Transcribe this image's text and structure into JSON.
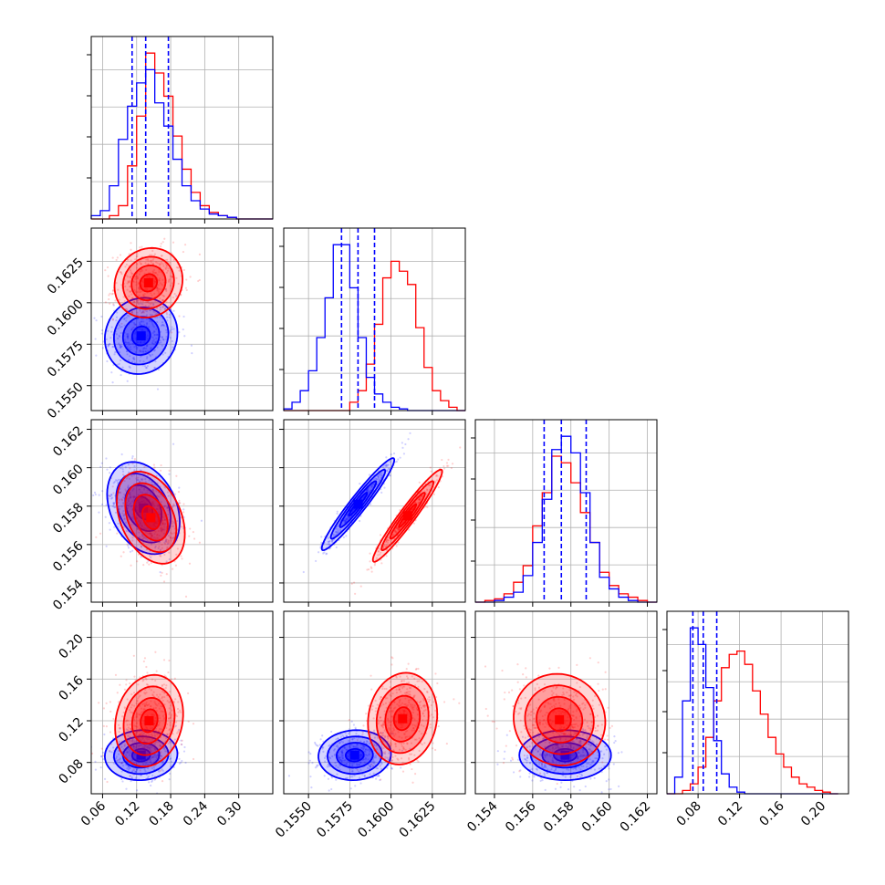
{
  "chart_data": {
    "type": "corner",
    "grid": true,
    "colors": {
      "series_a": "#0000ff",
      "series_b": "#ff0000",
      "frame": "#000000",
      "grid": "#b0b0b0"
    },
    "series": [
      {
        "color_key": "series_a"
      },
      {
        "color_key": "series_b"
      }
    ],
    "params": [
      {
        "range": [
          0.04,
          0.36
        ],
        "ticks": [
          0.06,
          0.12,
          0.18,
          0.24,
          0.3
        ],
        "tick_labels": [
          "0.06",
          "0.12",
          "0.18",
          "0.24",
          "0.30"
        ]
      },
      {
        "range": [
          0.1535,
          0.1645
        ],
        "ticks": [
          0.155,
          0.1575,
          0.16,
          0.1625
        ],
        "tick_labels": [
          "0.1550",
          "0.1575",
          "0.1600",
          "0.1625"
        ]
      },
      {
        "range": [
          0.153,
          0.1625
        ],
        "ticks": [
          0.154,
          0.156,
          0.158,
          0.16,
          0.162
        ],
        "tick_labels": [
          "0.154",
          "0.156",
          "0.158",
          "0.160",
          "0.162"
        ]
      },
      {
        "range": [
          0.05,
          0.225
        ],
        "ticks": [
          0.08,
          0.12,
          0.16,
          0.2
        ],
        "tick_labels": [
          "0.08",
          "0.12",
          "0.16",
          "0.20"
        ]
      }
    ],
    "histograms": [
      {
        "param": 0,
        "bin_edges": [
          0.04,
          0.056,
          0.072,
          0.088,
          0.104,
          0.12,
          0.136,
          0.152,
          0.168,
          0.184,
          0.2,
          0.216,
          0.232,
          0.248,
          0.264,
          0.28,
          0.296,
          0.312,
          0.328,
          0.344,
          0.36
        ],
        "ymax": 1.1,
        "series_a_counts": [
          0.02,
          0.05,
          0.2,
          0.48,
          0.68,
          0.82,
          0.9,
          0.7,
          0.56,
          0.36,
          0.2,
          0.11,
          0.06,
          0.03,
          0.02,
          0.01,
          0.0,
          0.0,
          0.0,
          0.0
        ],
        "series_b_counts": [
          0.0,
          0.0,
          0.02,
          0.08,
          0.32,
          0.62,
          1.0,
          0.88,
          0.74,
          0.5,
          0.3,
          0.16,
          0.08,
          0.04,
          0.02,
          0.01,
          0.0,
          0.0,
          0.0,
          0.0
        ],
        "quantile_lines": [
          0.112,
          0.136,
          0.176
        ]
      },
      {
        "param": 1,
        "bin_edges": [
          0.1535,
          0.154,
          0.1545,
          0.155,
          0.1555,
          0.156,
          0.1565,
          0.157,
          0.1575,
          0.158,
          0.1585,
          0.159,
          0.1595,
          0.16,
          0.1605,
          0.161,
          0.1615,
          0.162,
          0.1625,
          0.163,
          0.1635,
          0.164,
          0.1645
        ],
        "ymax": 1.1,
        "series_a_counts": [
          0.01,
          0.05,
          0.12,
          0.24,
          0.44,
          0.68,
          1.0,
          1.0,
          0.74,
          0.44,
          0.2,
          0.1,
          0.05,
          0.02,
          0.01,
          0.0,
          0.0,
          0.0,
          0.0,
          0.0,
          0.0,
          0.0
        ],
        "series_b_counts": [
          0.0,
          0.0,
          0.0,
          0.0,
          0.0,
          0.0,
          0.0,
          0.0,
          0.05,
          0.12,
          0.28,
          0.52,
          0.8,
          0.9,
          0.84,
          0.76,
          0.5,
          0.26,
          0.12,
          0.06,
          0.02,
          0.0
        ],
        "quantile_lines": [
          0.157,
          0.158,
          0.159
        ]
      },
      {
        "param": 2,
        "bin_edges": [
          0.153,
          0.1535,
          0.154,
          0.1545,
          0.155,
          0.1555,
          0.156,
          0.1565,
          0.157,
          0.1575,
          0.158,
          0.1585,
          0.159,
          0.1595,
          0.16,
          0.1605,
          0.161,
          0.1615,
          0.162,
          0.1625
        ],
        "ymax": 1.1,
        "series_a_counts": [
          0.0,
          0.0,
          0.01,
          0.03,
          0.06,
          0.16,
          0.36,
          0.62,
          0.92,
          1.0,
          0.9,
          0.66,
          0.36,
          0.15,
          0.08,
          0.03,
          0.01,
          0.0,
          0.0
        ],
        "series_b_counts": [
          0.0,
          0.01,
          0.02,
          0.05,
          0.12,
          0.22,
          0.46,
          0.66,
          0.88,
          0.84,
          0.72,
          0.54,
          0.36,
          0.18,
          0.1,
          0.05,
          0.03,
          0.01,
          0.0
        ],
        "quantile_lines": [
          0.1566,
          0.1575,
          0.1588
        ]
      },
      {
        "param": 3,
        "bin_edges": [
          0.05,
          0.0575,
          0.065,
          0.0725,
          0.08,
          0.0875,
          0.095,
          0.1025,
          0.11,
          0.1175,
          0.125,
          0.1325,
          0.14,
          0.1475,
          0.155,
          0.1625,
          0.17,
          0.1775,
          0.185,
          0.1925,
          0.2,
          0.2075,
          0.215
        ],
        "ymax": 1.1,
        "series_a_counts": [
          0.0,
          0.1,
          0.56,
          1.0,
          0.9,
          0.64,
          0.32,
          0.12,
          0.04,
          0.01,
          0.0,
          0.0,
          0.0,
          0.0,
          0.0,
          0.0,
          0.0,
          0.0,
          0.0,
          0.0,
          0.0,
          0.0
        ],
        "series_b_counts": [
          0.0,
          0.0,
          0.02,
          0.06,
          0.16,
          0.34,
          0.56,
          0.76,
          0.84,
          0.86,
          0.78,
          0.62,
          0.48,
          0.34,
          0.24,
          0.16,
          0.1,
          0.06,
          0.04,
          0.02,
          0.01,
          0.0
        ],
        "quantile_lines": [
          0.075,
          0.085,
          0.098
        ]
      }
    ],
    "panels_2d": [
      {
        "row": 1,
        "col": 0,
        "samples": 420,
        "series_a": {
          "mean": [
            0.128,
            0.158
          ],
          "sd": [
            0.032,
            0.00115
          ],
          "rho": 0.08
        },
        "series_b": {
          "mean": [
            0.141,
            0.1612
          ],
          "sd": [
            0.03,
            0.00105
          ],
          "rho": 0.1
        }
      },
      {
        "row": 2,
        "col": 0,
        "samples": 420,
        "series_a": {
          "mean": [
            0.132,
            0.1579
          ],
          "sd": [
            0.032,
            0.0012
          ],
          "rho": -0.3
        },
        "series_b": {
          "mean": [
            0.145,
            0.1574
          ],
          "sd": [
            0.03,
            0.0012
          ],
          "rho": -0.35
        }
      },
      {
        "row": 2,
        "col": 1,
        "samples": 420,
        "series_a": {
          "mean": [
            0.158,
            0.1581
          ],
          "sd": [
            0.0011,
            0.0012
          ],
          "rho": 0.96
        },
        "series_b": {
          "mean": [
            0.161,
            0.1575
          ],
          "sd": [
            0.00105,
            0.0012
          ],
          "rho": 0.96
        }
      },
      {
        "row": 3,
        "col": 0,
        "samples": 420,
        "series_a": {
          "mean": [
            0.128,
            0.087
          ],
          "sd": [
            0.032,
            0.012
          ],
          "rho": 0.05
        },
        "series_b": {
          "mean": [
            0.142,
            0.12
          ],
          "sd": [
            0.03,
            0.022
          ],
          "rho": 0.15
        }
      },
      {
        "row": 3,
        "col": 1,
        "samples": 420,
        "series_a": {
          "mean": [
            0.1578,
            0.087
          ],
          "sd": [
            0.0011,
            0.012
          ],
          "rho": 0.05
        },
        "series_b": {
          "mean": [
            0.1607,
            0.122
          ],
          "sd": [
            0.00105,
            0.022
          ],
          "rho": 0.1
        }
      },
      {
        "row": 3,
        "col": 2,
        "samples": 420,
        "series_a": {
          "mean": [
            0.1577,
            0.087
          ],
          "sd": [
            0.0012,
            0.012
          ],
          "rho": 0.0
        },
        "series_b": {
          "mean": [
            0.1574,
            0.121
          ],
          "sd": [
            0.0012,
            0.022
          ],
          "rho": -0.05
        }
      }
    ],
    "contour_levels_sigma": [
      0.5,
      1.0,
      1.5,
      2.0
    ]
  }
}
